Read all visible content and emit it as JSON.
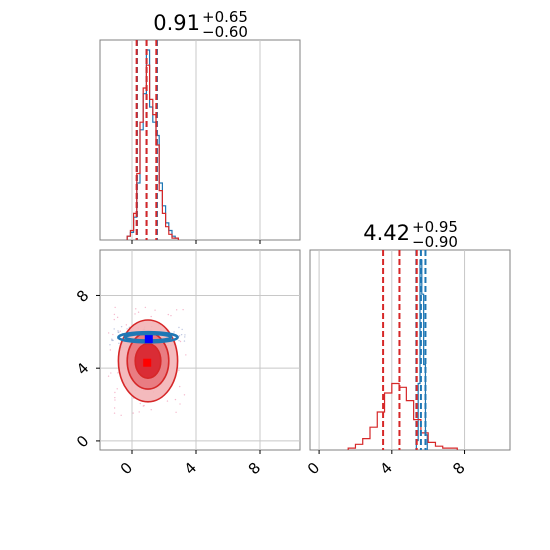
{
  "colors": {
    "series_a": "#1f77b4",
    "series_b": "#d62728",
    "axis": "#808080",
    "grid": "#c8c8c8",
    "marker_a": "#0000ff",
    "marker_b": "#ff0000"
  },
  "chart_data": {
    "type": "corner",
    "parameters": [
      {
        "title_value": "0.91",
        "title_plus": "+0.65",
        "title_minus": "−0.60",
        "range": [
          -2,
          10.5
        ],
        "ticks": [
          0,
          4,
          8
        ],
        "tick_labels": [
          "0",
          "4",
          "8"
        ],
        "histogram_a": {
          "x": [
            -0.2,
            0.0,
            0.2,
            0.4,
            0.6,
            0.8,
            1.0,
            1.2,
            1.4,
            1.6,
            1.8,
            2.0,
            2.2,
            2.4,
            2.6,
            2.8
          ],
          "counts": [
            2,
            4,
            12,
            30,
            58,
            77,
            100,
            70,
            62,
            55,
            30,
            18,
            9,
            5,
            2,
            1
          ]
        },
        "histogram_b": {
          "x": [
            -0.2,
            0.0,
            0.2,
            0.4,
            0.6,
            0.8,
            1.0,
            1.2,
            1.4,
            1.6,
            1.8,
            2.0,
            2.2,
            2.4,
            2.6,
            2.8
          ],
          "counts": [
            2,
            5,
            14,
            35,
            62,
            80,
            92,
            74,
            66,
            50,
            26,
            14,
            7,
            3,
            1,
            1
          ]
        },
        "quantiles_a": [
          0.31,
          0.91,
          1.56
        ],
        "quantiles_b": [
          0.29,
          0.91,
          1.52
        ]
      },
      {
        "title_value": "4.42",
        "title_plus": "+0.95",
        "title_minus": "−0.90",
        "range": [
          -0.5,
          10.5
        ],
        "ticks": [
          0,
          4,
          8
        ],
        "tick_labels": [
          "0",
          "4",
          "8"
        ],
        "histogram_a": {
          "x": [
            5.4,
            5.5,
            5.6,
            5.7,
            5.8,
            5.9
          ],
          "counts": [
            5,
            35,
            100,
            82,
            45,
            8
          ]
        },
        "histogram_b": {
          "x": [
            1.8,
            2.2,
            2.6,
            3.0,
            3.4,
            3.8,
            4.2,
            4.6,
            5.0,
            5.4,
            5.8,
            6.2,
            6.6,
            7.0,
            7.4
          ],
          "counts": [
            1,
            3,
            6,
            12,
            20,
            30,
            35,
            33,
            26,
            16,
            9,
            4,
            2,
            1,
            1
          ]
        },
        "quantiles_a": [
          5.35,
          5.6,
          5.85
        ],
        "quantiles_b": [
          3.52,
          4.42,
          5.37
        ]
      }
    ],
    "joint": {
      "contours_a": [
        {
          "center": [
            1.0,
            5.7
          ],
          "radius": [
            1.85,
            0.28
          ]
        },
        {
          "center": [
            1.0,
            5.7
          ],
          "radius": [
            1.45,
            0.18
          ]
        }
      ],
      "contours_b": [
        {
          "center": [
            1.0,
            4.4
          ],
          "radius": [
            1.85,
            2.25
          ]
        },
        {
          "center": [
            1.0,
            4.4
          ],
          "radius": [
            1.3,
            1.55
          ]
        },
        {
          "center": [
            1.0,
            4.4
          ],
          "radius": [
            0.8,
            0.95
          ]
        }
      ],
      "marker_a": [
        1.05,
        5.6
      ],
      "marker_b": [
        0.95,
        4.3
      ]
    },
    "grid": true
  }
}
